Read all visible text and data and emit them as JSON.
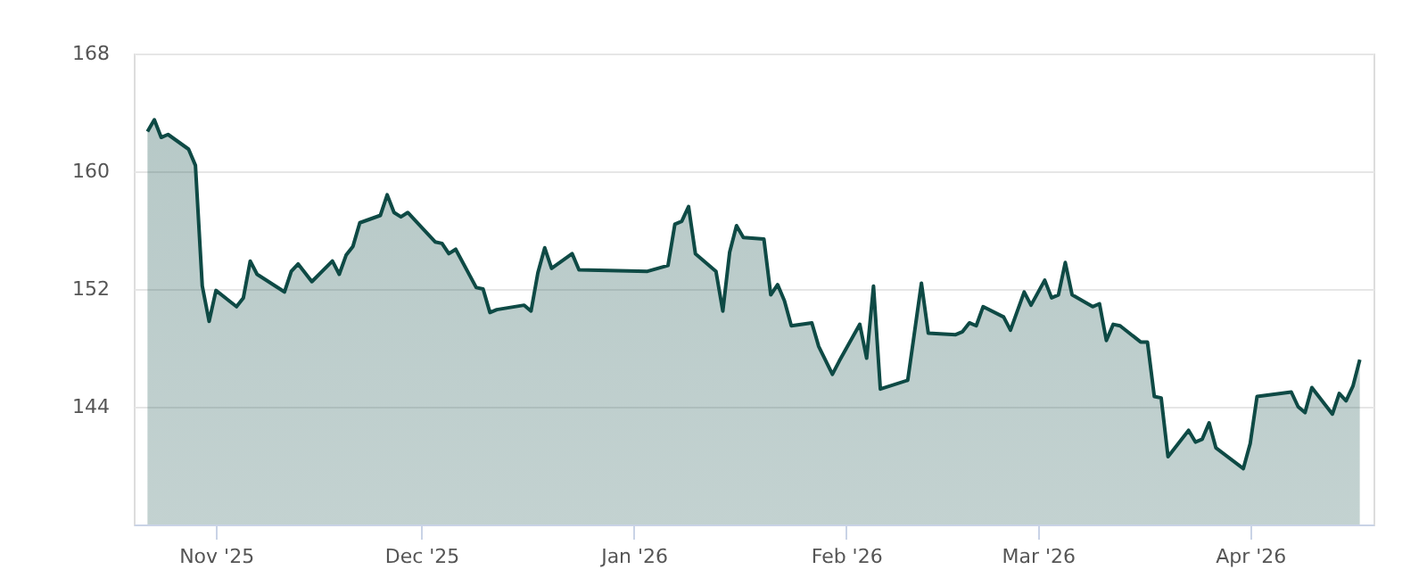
{
  "chart_data": {
    "type": "area",
    "x": [
      "2025-10-22",
      "2025-10-23",
      "2025-10-24",
      "2025-10-25",
      "2025-10-28",
      "2025-10-29",
      "2025-10-30",
      "2025-10-31",
      "2025-11-01",
      "2025-11-04",
      "2025-11-05",
      "2025-11-06",
      "2025-11-07",
      "2025-11-11",
      "2025-11-12",
      "2025-11-13",
      "2025-11-15",
      "2025-11-18",
      "2025-11-19",
      "2025-11-20",
      "2025-11-21",
      "2025-11-22",
      "2025-11-25",
      "2025-11-26",
      "2025-11-27",
      "2025-11-28",
      "2025-11-29",
      "2025-12-03",
      "2025-12-04",
      "2025-12-05",
      "2025-12-06",
      "2025-12-09",
      "2025-12-10",
      "2025-12-11",
      "2025-12-12",
      "2025-12-16",
      "2025-12-17",
      "2025-12-18",
      "2025-12-19",
      "2025-12-20",
      "2025-12-23",
      "2025-12-24",
      "2026-01-03",
      "2026-01-06",
      "2026-01-07",
      "2026-01-08",
      "2026-01-09",
      "2026-01-10",
      "2026-01-13",
      "2026-01-14",
      "2026-01-15",
      "2026-01-16",
      "2026-01-17",
      "2026-01-20",
      "2026-01-21",
      "2026-01-22",
      "2026-01-23",
      "2026-01-24",
      "2026-01-27",
      "2026-01-28",
      "2026-01-30",
      "2026-01-31",
      "2026-02-03",
      "2026-02-04",
      "2026-02-05",
      "2026-02-06",
      "2026-02-10",
      "2026-02-12",
      "2026-02-13",
      "2026-02-17",
      "2026-02-18",
      "2026-02-19",
      "2026-02-20",
      "2026-02-21",
      "2026-02-24",
      "2026-02-25",
      "2026-02-27",
      "2026-02-28",
      "2026-03-02",
      "2026-03-03",
      "2026-03-04",
      "2026-03-05",
      "2026-03-06",
      "2026-03-09",
      "2026-03-10",
      "2026-03-11",
      "2026-03-12",
      "2026-03-13",
      "2026-03-16",
      "2026-03-17",
      "2026-03-18",
      "2026-03-19",
      "2026-03-20",
      "2026-03-23",
      "2026-03-24",
      "2026-03-25",
      "2026-03-26",
      "2026-03-27",
      "2026-03-31",
      "2026-04-01",
      "2026-04-02",
      "2026-04-07",
      "2026-04-08",
      "2026-04-09",
      "2026-04-10",
      "2026-04-13",
      "2026-04-14",
      "2026-04-15",
      "2026-04-16",
      "2026-04-17"
    ],
    "series": [
      {
        "color": "#0e4a45",
        "values": [
          162.7,
          163.5,
          162.3,
          162.5,
          161.5,
          160.4,
          152.2,
          149.8,
          151.9,
          150.8,
          151.4,
          153.9,
          153.0,
          151.8,
          153.2,
          153.7,
          152.5,
          153.9,
          153.0,
          154.3,
          154.9,
          156.5,
          157.0,
          158.4,
          157.2,
          156.9,
          157.2,
          155.2,
          155.1,
          154.4,
          154.7,
          152.1,
          152.0,
          150.4,
          150.6,
          150.9,
          150.5,
          153.1,
          154.8,
          153.4,
          154.4,
          153.3,
          153.2,
          153.6,
          156.4,
          156.6,
          157.6,
          154.4,
          153.2,
          150.5,
          154.5,
          156.3,
          155.5,
          155.4,
          151.6,
          152.3,
          151.2,
          149.5,
          149.7,
          148.1,
          146.2,
          147.1,
          149.6,
          147.3,
          152.2,
          145.2,
          145.8,
          152.4,
          149.0,
          148.9,
          149.1,
          149.7,
          149.5,
          150.8,
          150.1,
          149.2,
          151.8,
          150.9,
          152.6,
          151.4,
          151.6,
          153.8,
          151.6,
          150.8,
          151.0,
          148.5,
          149.6,
          149.5,
          148.4,
          148.4,
          144.7,
          144.6,
          140.6,
          142.4,
          141.6,
          141.8,
          142.9,
          141.2,
          139.8,
          141.5,
          144.7,
          145.0,
          144.0,
          143.6,
          145.3,
          143.5,
          144.9,
          144.4,
          145.4,
          147.2
        ]
      }
    ],
    "xlim": [
      "2025-10-20",
      "2026-04-19"
    ],
    "xticks": [
      {
        "value": "2025-11-01",
        "label": "Nov '25"
      },
      {
        "value": "2025-12-01",
        "label": "Dec '25"
      },
      {
        "value": "2026-01-01",
        "label": "Jan '26"
      },
      {
        "value": "2026-02-01",
        "label": "Feb '26"
      },
      {
        "value": "2026-03-01",
        "label": "Mar '26"
      },
      {
        "value": "2026-04-01",
        "label": "Apr '26"
      }
    ],
    "ylim": [
      136,
      168
    ],
    "yticks": [
      144,
      152,
      160,
      168
    ],
    "grid": "y"
  }
}
